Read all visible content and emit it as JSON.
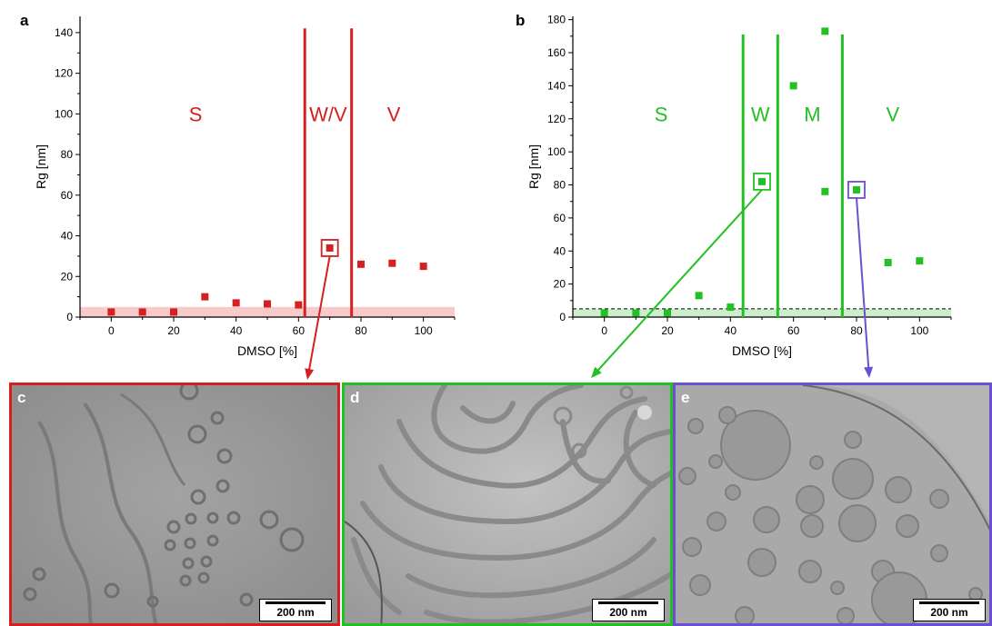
{
  "chart_data": [
    {
      "type": "scatter",
      "panel": "a",
      "xlabel": "DMSO [%]",
      "ylabel": "Rg [nm]",
      "xlim": [
        -10,
        110
      ],
      "ylim": [
        0,
        148
      ],
      "xticks": [
        0,
        20,
        40,
        60,
        80,
        100
      ],
      "yticks": [
        0,
        20,
        40,
        60,
        80,
        100,
        120,
        140
      ],
      "color": "#d42020",
      "points": [
        {
          "x": 0,
          "y": 2.5
        },
        {
          "x": 10,
          "y": 2.5
        },
        {
          "x": 20,
          "y": 2.5
        },
        {
          "x": 30,
          "y": 10
        },
        {
          "x": 40,
          "y": 7
        },
        {
          "x": 50,
          "y": 6.5
        },
        {
          "x": 60,
          "y": 6
        },
        {
          "x": 70,
          "y": 34
        },
        {
          "x": 80,
          "y": 26
        },
        {
          "x": 90,
          "y": 26.5
        },
        {
          "x": 100,
          "y": 25
        }
      ],
      "highlighted_point": {
        "x": 70,
        "y": 34
      },
      "boundaries": [
        62,
        77
      ],
      "threshold_band": 5,
      "regions": [
        {
          "label": "S",
          "x": 27
        },
        {
          "label": "W/V",
          "x": 69.5
        },
        {
          "label": "V",
          "x": 90.5
        }
      ]
    },
    {
      "type": "scatter",
      "panel": "b",
      "xlabel": "DMSO [%]",
      "ylabel": "Rg [nm]",
      "xlim": [
        -10,
        110
      ],
      "ylim": [
        0,
        182
      ],
      "xticks": [
        0,
        20,
        40,
        60,
        80,
        100
      ],
      "yticks": [
        0,
        20,
        40,
        60,
        80,
        100,
        120,
        140,
        160,
        180
      ],
      "color": "#22c022",
      "points": [
        {
          "x": 0,
          "y": 2.5
        },
        {
          "x": 10,
          "y": 2.5
        },
        {
          "x": 20,
          "y": 2.5
        },
        {
          "x": 30,
          "y": 13
        },
        {
          "x": 40,
          "y": 6
        },
        {
          "x": 50,
          "y": 82
        },
        {
          "x": 60,
          "y": 140
        },
        {
          "x": 70,
          "y": 173
        },
        {
          "x": 70,
          "y": 76
        },
        {
          "x": 80,
          "y": 77
        },
        {
          "x": 90,
          "y": 33
        },
        {
          "x": 100,
          "y": 34
        }
      ],
      "highlighted_points": [
        {
          "x": 50,
          "y": 82,
          "color": "#22c022"
        },
        {
          "x": 80,
          "y": 77,
          "color": "#6a4fd1"
        }
      ],
      "boundaries": [
        44,
        55,
        75.5
      ],
      "threshold_band": 5,
      "regions": [
        {
          "label": "S",
          "x": 18
        },
        {
          "label": "W",
          "x": 49.5
        },
        {
          "label": "M",
          "x": 66
        },
        {
          "label": "V",
          "x": 91.5
        }
      ]
    }
  ],
  "panel_a_letter": "a",
  "panel_b_letter": "b",
  "micrographs": [
    {
      "letter": "c",
      "border": "#d42020",
      "scale": "200 nm"
    },
    {
      "letter": "d",
      "border": "#22c022",
      "scale": "200 nm"
    },
    {
      "letter": "e",
      "border": "#6a4fd1",
      "scale": "200 nm"
    }
  ]
}
